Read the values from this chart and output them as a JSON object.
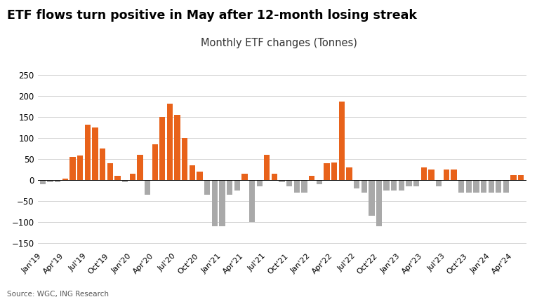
{
  "title": "ETF flows turn positive in May after 12-month losing streak",
  "subtitle": "Monthly ETF changes (Tonnes)",
  "source": "Source: WGC, ING Research",
  "background_color": "#ffffff",
  "bar_color_positive": "#E8621A",
  "bar_color_negative": "#A9A9A9",
  "ylim": [
    -165,
    270
  ],
  "yticks": [
    -150,
    -100,
    -50,
    0,
    50,
    100,
    150,
    200,
    250
  ],
  "values": [
    -10,
    -5,
    -5,
    3,
    55,
    58,
    132,
    125,
    75,
    40,
    10,
    -5,
    15,
    60,
    -35,
    85,
    150,
    182,
    155,
    100,
    35,
    20,
    -35,
    -110,
    -110,
    -35,
    -25,
    15,
    -100,
    -15,
    60,
    15,
    -5,
    -15,
    -30,
    -30,
    10,
    -10,
    40,
    42,
    188,
    30,
    -20,
    -30,
    -85,
    -110,
    -25,
    -25,
    -25,
    -15,
    -15,
    30,
    25,
    -15,
    25,
    25,
    -30,
    -30,
    -30,
    -30,
    -30,
    -30,
    -30,
    12,
    12
  ],
  "xtick_labels": [
    "Jan'19",
    "Apr'19",
    "Jul'19",
    "Oct'19",
    "Jan'20",
    "Apr'20",
    "Jul'20",
    "Oct'20",
    "Jan'21",
    "Apr'21",
    "Jul'21",
    "Oct'21",
    "Jan'22",
    "Apr'22",
    "Jul'22",
    "Oct'22",
    "Jan'23",
    "Apr'23",
    "Jul'23",
    "Oct'23",
    "Jan'24",
    "Apr'24"
  ],
  "xtick_positions": [
    0,
    3,
    6,
    9,
    12,
    15,
    18,
    21,
    24,
    27,
    30,
    33,
    36,
    39,
    42,
    45,
    48,
    51,
    54,
    57,
    60,
    63
  ]
}
